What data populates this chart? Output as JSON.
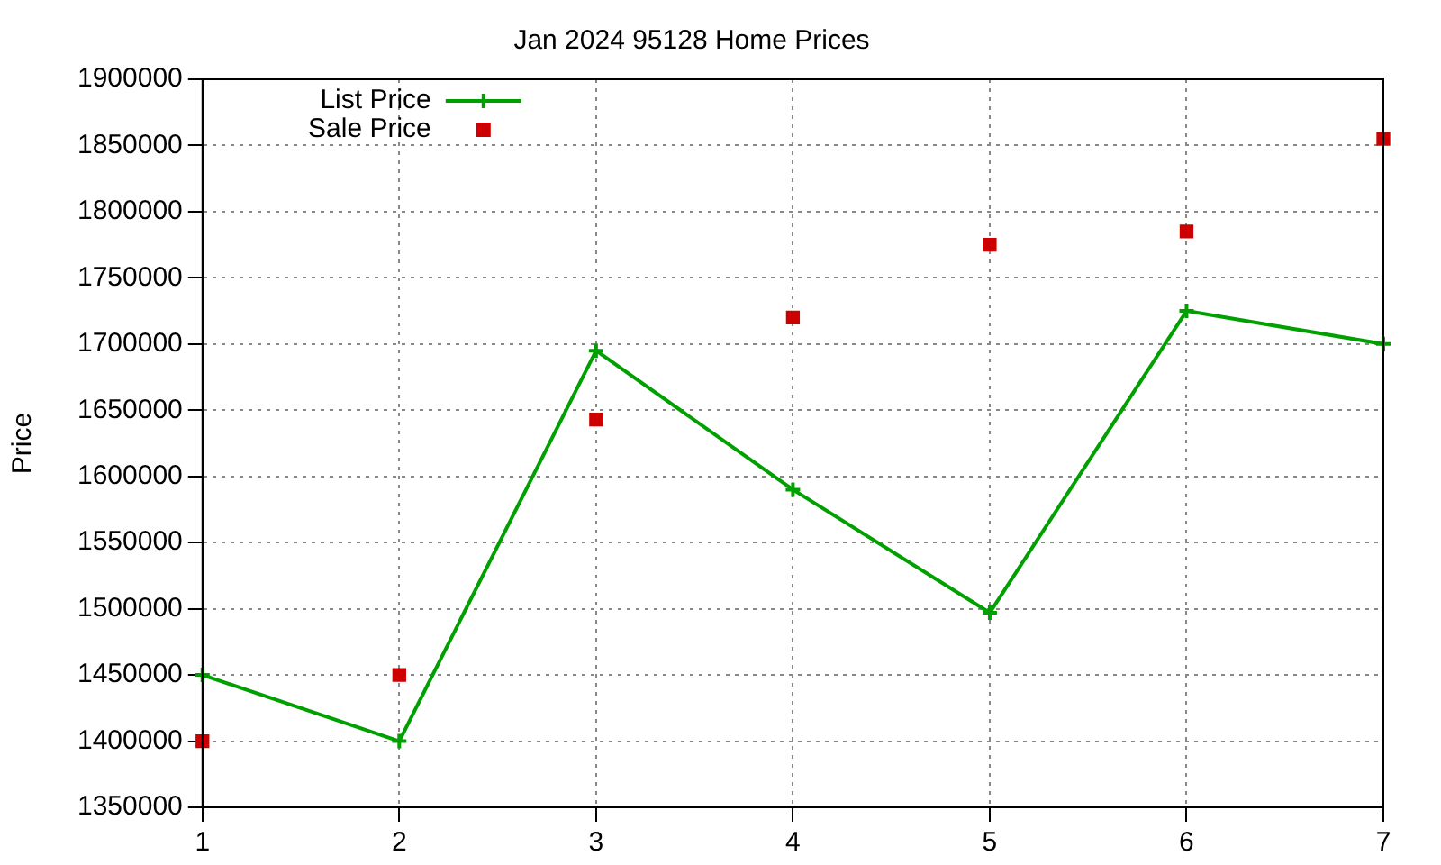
{
  "chart_data": {
    "type": "line",
    "title": "Jan 2024 95128 Home Prices",
    "ylabel": "Price",
    "x": [
      1,
      2,
      3,
      4,
      5,
      6,
      7
    ],
    "series": [
      {
        "name": "List Price",
        "color": "#00a000",
        "marker": "cross",
        "values": [
          1450000,
          1400000,
          1695000,
          1590000,
          1497000,
          1725000,
          1700000
        ]
      },
      {
        "name": "Sale Price",
        "type": "scatter",
        "color": "#cc0000",
        "marker": "square",
        "values": [
          1400000,
          1450000,
          1643000,
          1720000,
          1775000,
          1785000,
          1855000
        ]
      }
    ],
    "xlim": [
      1,
      7
    ],
    "xticks": [
      1,
      2,
      3,
      4,
      5,
      6,
      7
    ],
    "ylim": [
      1350000,
      1900000
    ],
    "yticks": [
      1350000,
      1400000,
      1450000,
      1500000,
      1550000,
      1600000,
      1650000,
      1700000,
      1750000,
      1800000,
      1850000,
      1900000
    ],
    "grid": true,
    "legend": "top left"
  }
}
